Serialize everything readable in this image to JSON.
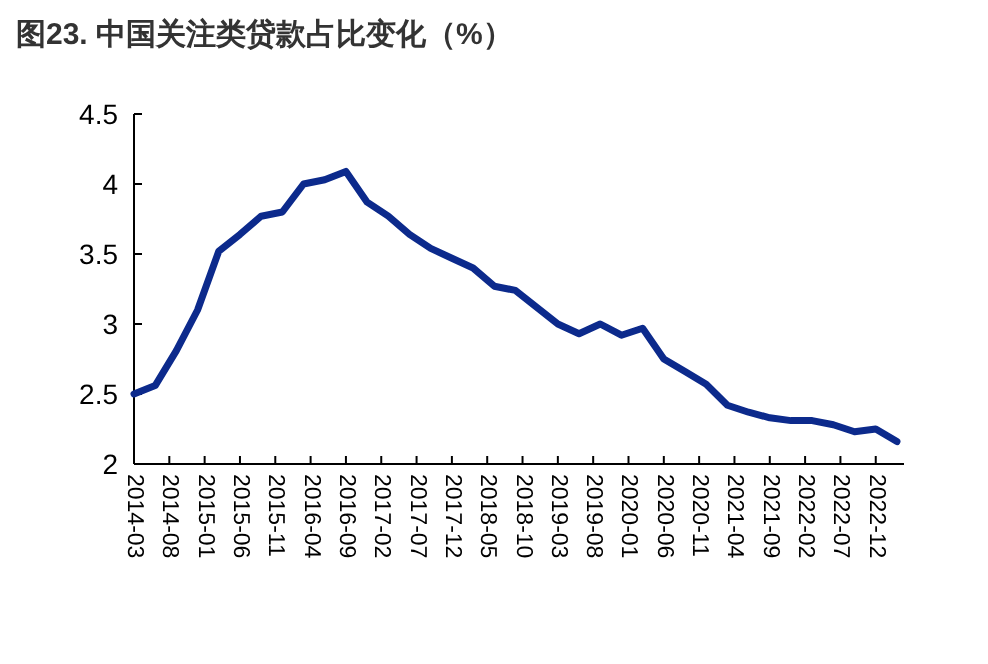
{
  "chart_data": {
    "type": "line",
    "title": "图23. 中国关注类贷款占比变化（%）",
    "x": [
      "2014-03",
      "2014-06",
      "2014-09",
      "2014-12",
      "2015-03",
      "2015-06",
      "2015-09",
      "2015-12",
      "2016-03",
      "2016-06",
      "2016-09",
      "2016-12",
      "2017-03",
      "2017-06",
      "2017-09",
      "2017-12",
      "2018-03",
      "2018-06",
      "2018-09",
      "2018-12",
      "2019-03",
      "2019-06",
      "2019-09",
      "2019-12",
      "2020-03",
      "2020-06",
      "2020-09",
      "2020-12",
      "2021-03",
      "2021-06",
      "2021-09",
      "2021-12",
      "2022-03",
      "2022-06",
      "2022-09",
      "2022-12",
      "2023-03"
    ],
    "series": [
      {
        "color": "#0c2a8c",
        "values": [
          2.5,
          2.56,
          2.81,
          3.1,
          3.52,
          3.64,
          3.77,
          3.8,
          4.0,
          4.03,
          4.09,
          3.87,
          3.77,
          3.64,
          3.54,
          3.47,
          3.4,
          3.27,
          3.24,
          3.12,
          3.0,
          2.93,
          3.0,
          2.92,
          2.97,
          2.75,
          2.66,
          2.57,
          2.42,
          2.37,
          2.33,
          2.31,
          2.31,
          2.28,
          2.23,
          2.25,
          2.16
        ]
      }
    ],
    "xlim": [
      "2014-03",
      "2023-04"
    ],
    "xticks": [
      "2014-03",
      "2014-08",
      "2015-01",
      "2015-06",
      "2015-11",
      "2016-04",
      "2016-09",
      "2017-02",
      "2017-07",
      "2017-12",
      "2018-05",
      "2018-10",
      "2019-03",
      "2019-08",
      "2020-01",
      "2020-06",
      "2020-11",
      "2021-04",
      "2021-09",
      "2022-02",
      "2022-07",
      "2022-12"
    ],
    "ylim": [
      2,
      4.5
    ],
    "yticks": [
      2,
      2.5,
      3,
      3.5,
      4,
      4.5
    ],
    "grid": false,
    "marker": "none",
    "line_style": "solid"
  }
}
